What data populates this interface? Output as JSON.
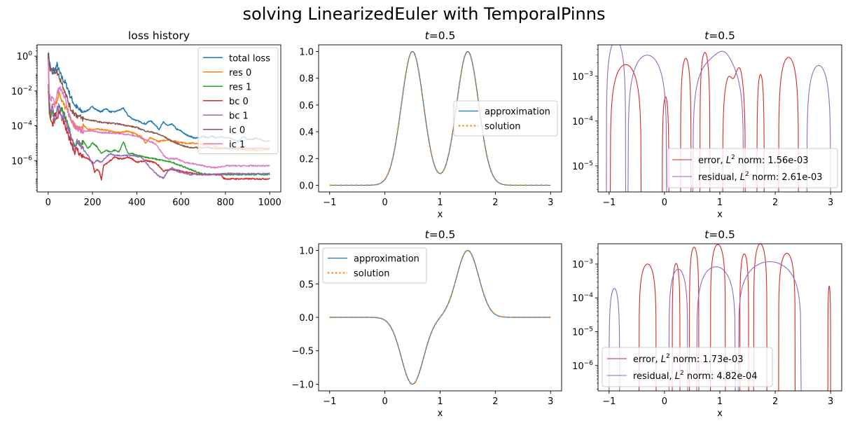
{
  "figure": {
    "suptitle": "solving LinearizedEuler with TemporalPinns"
  },
  "colors": {
    "blue": "#1f77b4",
    "orange": "#ff7f0e",
    "green": "#2ca02c",
    "red": "#d62728",
    "purple": "#9467bd",
    "brown": "#8c564b",
    "pink": "#e377c2"
  },
  "chart_data": [
    {
      "id": "loss",
      "type": "line",
      "title": "loss history",
      "xlabel": "",
      "ylabel": "",
      "yscale": "log",
      "xlim": [
        -50,
        1050
      ],
      "ylim_log10": [
        -7.8,
        0.65
      ],
      "xticks": [
        0,
        200,
        400,
        600,
        800,
        1000
      ],
      "yticks_log10": [
        0,
        -2,
        -4,
        -6
      ],
      "legend_position": "upper right",
      "series": [
        {
          "name": "total loss",
          "color": "blue",
          "x": [
            0,
            10,
            20,
            30,
            40,
            50,
            60,
            70,
            80,
            90,
            100,
            120,
            140,
            160,
            180,
            200,
            220,
            240,
            260,
            280,
            300,
            320,
            340,
            360,
            380,
            400,
            420,
            440,
            460,
            480,
            500,
            520,
            540,
            560,
            580,
            600,
            620,
            640,
            660,
            680,
            700,
            720,
            740,
            760,
            780,
            800,
            820,
            840,
            860,
            880,
            900,
            920,
            940,
            960,
            980,
            1000
          ],
          "log10": [
            0.2,
            -0.6,
            -1.1,
            -0.8,
            -0.5,
            -0.9,
            -1.2,
            -1.4,
            -1.6,
            -1.9,
            -2.3,
            -2.8,
            -3.1,
            -3.2,
            -3.1,
            -2.9,
            -3.1,
            -3.2,
            -3.0,
            -3.2,
            -3.2,
            -3.1,
            -3.0,
            -3.4,
            -3.6,
            -3.7,
            -3.8,
            -3.9,
            -3.7,
            -3.9,
            -4.2,
            -3.8,
            -4.0,
            -3.9,
            -4.2,
            -4.3,
            -4.5,
            -4.6,
            -4.7,
            -4.7,
            -4.6,
            -4.7,
            -4.6,
            -4.7,
            -4.6,
            -4.7,
            -4.7,
            -4.8,
            -4.9,
            -4.6,
            -4.8,
            -4.8,
            -4.7,
            -4.8,
            -4.9,
            -4.85
          ]
        },
        {
          "name": "res 0",
          "color": "orange",
          "x": [
            0,
            5,
            10,
            20,
            30,
            40,
            50,
            60,
            70,
            80,
            90,
            100,
            120,
            140,
            160,
            180,
            200,
            240,
            280,
            320,
            360,
            400,
            420,
            440,
            460,
            480,
            500,
            540,
            580,
            620,
            660,
            700,
            740,
            760,
            780,
            800,
            850,
            900,
            950,
            1000
          ],
          "log10": [
            -1.9,
            -3.0,
            -3.2,
            -2.8,
            -2.6,
            -2.6,
            -2.0,
            -2.5,
            -2.8,
            -3.0,
            -3.2,
            -3.6,
            -4.0,
            -4.2,
            -4.0,
            -4.2,
            -4.2,
            -4.2,
            -4.3,
            -4.4,
            -4.3,
            -4.5,
            -4.6,
            -5.0,
            -4.7,
            -4.8,
            -4.9,
            -4.8,
            -4.9,
            -5.0,
            -5.0,
            -5.1,
            -5.1,
            -5.2,
            -5.3,
            -5.3,
            -5.3,
            -5.4,
            -5.4,
            -5.4
          ]
        },
        {
          "name": "res 1",
          "color": "green",
          "x": [
            0,
            5,
            10,
            20,
            30,
            40,
            50,
            60,
            70,
            80,
            90,
            100,
            110,
            120,
            130,
            140,
            160,
            180,
            200,
            220,
            240,
            260,
            280,
            300,
            320,
            340,
            360,
            380,
            400,
            440,
            480,
            520,
            560,
            600,
            640,
            680,
            720,
            760,
            800,
            900,
            1000
          ],
          "log10": [
            -1.5,
            -3.2,
            -3.5,
            -3.2,
            -3.8,
            -3.0,
            -3.2,
            -3.0,
            -3.3,
            -3.6,
            -4.0,
            -4.4,
            -4.9,
            -5.3,
            -4.9,
            -5.2,
            -4.9,
            -5.3,
            -5.0,
            -5.2,
            -5.6,
            -5.4,
            -5.5,
            -5.4,
            -5.5,
            -4.9,
            -5.6,
            -5.6,
            -5.7,
            -5.8,
            -5.9,
            -6.0,
            -6.1,
            -6.3,
            -6.5,
            -6.7,
            -6.8,
            -6.8,
            -6.8,
            -6.8,
            -6.8
          ]
        },
        {
          "name": "bc 0",
          "color": "red",
          "x": [
            0,
            5,
            10,
            20,
            30,
            40,
            50,
            60,
            70,
            80,
            90,
            100,
            110,
            120,
            130,
            140,
            160,
            180,
            200,
            210,
            220,
            230,
            240,
            250,
            260,
            280,
            300,
            320,
            340,
            360,
            380,
            400,
            440,
            480,
            500,
            520,
            560,
            600,
            640,
            680,
            720,
            760,
            780,
            790,
            800,
            850,
            900,
            950,
            1000
          ],
          "log10": [
            0.3,
            -2.8,
            -3.5,
            -4.0,
            -3.2,
            -3.6,
            -3.2,
            -3.5,
            -3.8,
            -4.2,
            -4.6,
            -4.8,
            -5.2,
            -5.5,
            -5.3,
            -5.6,
            -5.8,
            -5.9,
            -6.1,
            -6.7,
            -6.5,
            -6.6,
            -7.1,
            -6.3,
            -6.2,
            -6.0,
            -5.8,
            -5.9,
            -5.9,
            -5.8,
            -5.9,
            -6.1,
            -6.0,
            -6.1,
            -6.3,
            -6.6,
            -6.5,
            -6.6,
            -6.7,
            -6.8,
            -6.8,
            -6.8,
            -6.8,
            -7.0,
            -7.05,
            -7.05,
            -7.05,
            -7.05,
            -7.05
          ]
        },
        {
          "name": "bc 1",
          "color": "purple",
          "x": [
            0,
            5,
            10,
            20,
            30,
            40,
            50,
            60,
            70,
            80,
            90,
            100,
            110,
            120,
            130,
            140,
            160,
            180,
            200,
            220,
            240,
            260,
            280,
            300,
            340,
            380,
            420,
            460,
            500,
            520,
            540,
            560,
            580,
            600,
            640,
            680,
            720,
            760,
            800,
            900,
            1000
          ],
          "log10": [
            0.0,
            -2.6,
            -3.2,
            -3.0,
            -3.6,
            -3.2,
            -2.8,
            -3.5,
            -3.3,
            -3.8,
            -4.2,
            -4.5,
            -4.9,
            -5.4,
            -4.9,
            -5.0,
            -5.4,
            -5.7,
            -6.2,
            -6.0,
            -6.1,
            -5.8,
            -5.6,
            -5.7,
            -5.7,
            -5.7,
            -5.8,
            -6.4,
            -6.9,
            -7.0,
            -6.6,
            -6.4,
            -6.6,
            -6.7,
            -6.8,
            -6.8,
            -6.8,
            -6.8,
            -6.75,
            -6.75,
            -6.75
          ]
        },
        {
          "name": "ic 0",
          "color": "brown",
          "x": [
            0,
            5,
            10,
            20,
            30,
            40,
            50,
            60,
            70,
            80,
            90,
            100,
            120,
            140,
            160,
            180,
            200,
            240,
            280,
            320,
            360,
            400,
            440,
            480,
            520,
            560,
            600,
            620,
            640,
            680,
            720,
            760,
            800,
            900,
            1000
          ],
          "log10": [
            0.1,
            -0.6,
            -0.7,
            -0.8,
            -0.85,
            -0.9,
            -1.2,
            -1.5,
            -1.8,
            -2.2,
            -2.6,
            -3.0,
            -3.3,
            -3.5,
            -3.6,
            -3.65,
            -3.7,
            -3.8,
            -3.85,
            -3.9,
            -4.0,
            -4.1,
            -4.3,
            -4.4,
            -4.6,
            -4.9,
            -5.1,
            -5.2,
            -5.25,
            -5.25,
            -5.25,
            -5.3,
            -5.3,
            -5.3,
            -5.3
          ]
        },
        {
          "name": "ic 1",
          "color": "pink",
          "x": [
            0,
            5,
            10,
            20,
            30,
            40,
            50,
            60,
            70,
            80,
            90,
            100,
            110,
            120,
            140,
            160,
            200,
            240,
            280,
            320,
            360,
            400,
            440,
            480,
            500,
            520,
            540,
            580,
            620,
            660,
            700,
            740,
            760,
            780,
            800,
            900,
            1000
          ],
          "log10": [
            -0.3,
            -2.0,
            -2.6,
            -2.3,
            -2.8,
            -2.2,
            -1.8,
            -2.0,
            -2.2,
            -2.6,
            -3.2,
            -3.5,
            -3.8,
            -4.0,
            -4.2,
            -4.3,
            -4.3,
            -4.4,
            -4.4,
            -4.45,
            -4.5,
            -4.6,
            -4.8,
            -5.0,
            -5.3,
            -5.7,
            -5.9,
            -5.9,
            -6.1,
            -6.2,
            -6.3,
            -6.4,
            -6.4,
            -6.35,
            -6.3,
            -6.3,
            -6.3
          ]
        }
      ]
    },
    {
      "id": "sol_top",
      "type": "line",
      "title": "t=0.5",
      "title_var": "t",
      "title_val": "=0.5",
      "xlabel": "x",
      "xlim": [
        -1.2,
        3.2
      ],
      "ylim": [
        -0.05,
        1.05
      ],
      "xticks": [
        -1,
        0,
        1,
        2,
        3
      ],
      "yticks": [
        0.0,
        0.2,
        0.4,
        0.6,
        0.8,
        1.0
      ],
      "ytick_labels": [
        "0.0",
        "0.2",
        "0.4",
        "0.6",
        "0.8",
        "1.0"
      ],
      "legend_position": "center right",
      "formula": "exp(-((x-0.5)^2)/0.08) + exp(-((x-1.5)^2)/0.08)",
      "series": [
        {
          "name": "approximation",
          "color": "blue",
          "style": "solid"
        },
        {
          "name": "solution",
          "color": "orange",
          "style": "dotted"
        }
      ]
    },
    {
      "id": "err_top",
      "type": "line",
      "title": "t=0.5",
      "title_var": "t",
      "title_val": "=0.5",
      "xlabel": "x",
      "yscale": "log",
      "xlim": [
        -1.2,
        3.2
      ],
      "ylim_log10": [
        -5.58,
        -2.3
      ],
      "xticks": [
        -1,
        0,
        1,
        2,
        3
      ],
      "yticks_log10": [
        -3,
        -4,
        -5
      ],
      "legend_position": "lower right",
      "series": [
        {
          "name": "error",
          "label_prefix": "error, ",
          "norm": "1.56e-03",
          "color": "red",
          "arches": [
            [
              -0.98,
              -0.42,
              -2.74
            ],
            [
              -0.04,
              0.08,
              -3.46
            ],
            [
              0.29,
              0.48,
              -2.6
            ],
            [
              0.64,
              0.82,
              -2.47
            ],
            [
              1.05,
              1.46,
              -2.8,
              1.24,
              -3.05,
              1.38,
              -2.62
            ],
            [
              1.67,
              1.8,
              -2.96
            ],
            [
              2.06,
              2.42,
              -2.58
            ]
          ]
        },
        {
          "name": "residual",
          "label_prefix": "residual, ",
          "norm": "2.61e-03",
          "color": "purple",
          "arches": [
            [
              -1.05,
              -0.7,
              -2.2
            ],
            [
              -0.66,
              0.04,
              -2.53
            ],
            [
              0.51,
              1.43,
              -2.55,
              0.75,
              -2.57,
              1.08,
              -2.42
            ],
            [
              2.57,
              3.0,
              -2.76,
              2.85,
              -2.76
            ]
          ]
        }
      ]
    },
    {
      "id": "sol_bottom",
      "type": "line",
      "title": "t=0.5",
      "title_var": "t",
      "title_val": "=0.5",
      "xlabel": "x",
      "xlim": [
        -1.2,
        3.2
      ],
      "ylim": [
        -1.1,
        1.1
      ],
      "xticks": [
        -1,
        0,
        1,
        2,
        3
      ],
      "yticks": [
        -1.0,
        -0.5,
        0.0,
        0.5,
        1.0
      ],
      "ytick_labels": [
        "−1.0",
        "−0.5",
        "0.0",
        "0.5",
        "1.0"
      ],
      "legend_position": "upper left",
      "formula": "-exp(-((x-0.5)^2)/0.08) + exp(-((x-1.5)^2)/0.08)",
      "series": [
        {
          "name": "approximation",
          "color": "blue",
          "style": "solid"
        },
        {
          "name": "solution",
          "color": "orange",
          "style": "dotted"
        }
      ]
    },
    {
      "id": "err_bottom",
      "type": "line",
      "title": "t=0.5",
      "title_var": "t",
      "title_val": "=0.5",
      "xlabel": "x",
      "yscale": "log",
      "xlim": [
        -1.2,
        3.2
      ],
      "ylim_log10": [
        -6.75,
        -2.4
      ],
      "xticks": [
        -1,
        0,
        1,
        2,
        3
      ],
      "yticks_log10": [
        -3,
        -4,
        -5,
        -6
      ],
      "legend_position": "lower left",
      "series": [
        {
          "name": "error",
          "label_prefix": "error, ",
          "norm": "1.73e-03",
          "color": "red",
          "arches": [
            [
              -0.46,
              -0.15,
              -3.0
            ],
            [
              0.14,
              0.28,
              -2.98
            ],
            [
              0.45,
              0.62,
              -2.5
            ],
            [
              0.83,
              1.1,
              -2.42
            ],
            [
              1.36,
              1.52,
              -2.7
            ],
            [
              1.61,
              1.85,
              -2.4
            ],
            [
              2.06,
              2.36,
              -2.68
            ],
            [
              2.95,
              3.0,
              -3.65,
              3.0,
              -3.65
            ]
          ]
        },
        {
          "name": "residual",
          "label_prefix": "residual, ",
          "norm": "4.82e-04",
          "color": "purple",
          "arches": [
            [
              -1.0,
              -0.81,
              -3.72,
              -0.93,
              -3.72
            ],
            [
              0.08,
              0.42,
              -3.15
            ],
            [
              0.58,
              1.28,
              -3.08
            ],
            [
              1.33,
              2.47,
              -2.93,
              1.9,
              -2.93
            ]
          ]
        }
      ]
    }
  ]
}
